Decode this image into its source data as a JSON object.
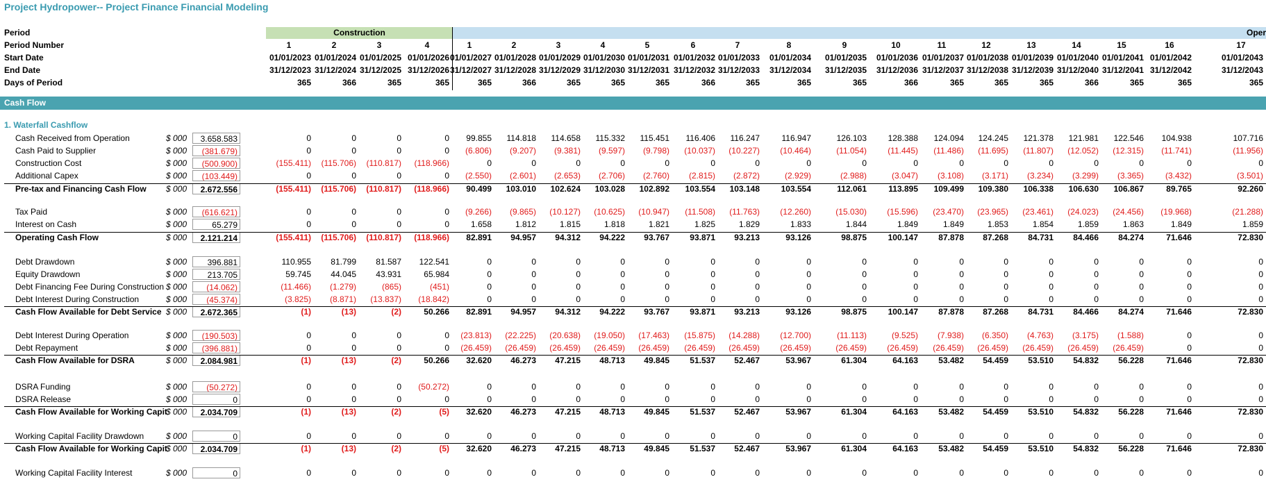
{
  "sheet_title": "Project Hydropower-- Project Finance Financial Modeling",
  "bands": {
    "construction": "Construction",
    "operation": "Oper"
  },
  "section": "Cash Flow",
  "subsection": "1. Waterfall Cashflow",
  "header_rows": [
    {
      "label": "Period",
      "cells": [
        "",
        "",
        "",
        "",
        "",
        "",
        "",
        "",
        "",
        "",
        "",
        "",
        "",
        "",
        "",
        "",
        "",
        "",
        "",
        "",
        ""
      ]
    },
    {
      "label": "Period Number",
      "cells": [
        "1",
        "2",
        "3",
        "4",
        "1",
        "2",
        "3",
        "4",
        "5",
        "6",
        "7",
        "8",
        "9",
        "10",
        "11",
        "12",
        "13",
        "14",
        "15",
        "16",
        "17"
      ]
    },
    {
      "label": "Start Date",
      "cells": [
        "01/01/2023",
        "01/01/2024",
        "01/01/2025",
        "01/01/2026",
        "01/01/2027",
        "01/01/2028",
        "01/01/2029",
        "01/01/2030",
        "01/01/2031",
        "01/01/2032",
        "01/01/2033",
        "01/01/2034",
        "01/01/2035",
        "01/01/2036",
        "01/01/2037",
        "01/01/2038",
        "01/01/2039",
        "01/01/2040",
        "01/01/2041",
        "01/01/2042",
        "01/01/2043"
      ]
    },
    {
      "label": "End Date",
      "cells": [
        "31/12/2023",
        "31/12/2024",
        "31/12/2025",
        "31/12/2026",
        "31/12/2027",
        "31/12/2028",
        "31/12/2029",
        "31/12/2030",
        "31/12/2031",
        "31/12/2032",
        "31/12/2033",
        "31/12/2034",
        "31/12/2035",
        "31/12/2036",
        "31/12/2037",
        "31/12/2038",
        "31/12/2039",
        "31/12/2040",
        "31/12/2041",
        "31/12/2042",
        "31/12/2043"
      ]
    },
    {
      "label": "Days of Period",
      "cells": [
        "365",
        "366",
        "365",
        "365",
        "365",
        "366",
        "365",
        "365",
        "365",
        "366",
        "365",
        "365",
        "365",
        "366",
        "365",
        "365",
        "365",
        "366",
        "365",
        "365",
        "365"
      ]
    }
  ],
  "rows": [
    {
      "label": "Cash Received from Operation",
      "unit": "$ 000",
      "total": "3.658.583",
      "values": [
        "0",
        "0",
        "0",
        "0",
        "99.855",
        "114.818",
        "114.658",
        "115.332",
        "115.451",
        "116.406",
        "116.247",
        "116.947",
        "126.103",
        "128.388",
        "124.094",
        "124.245",
        "121.378",
        "121.981",
        "122.546",
        "104.938",
        "107.716"
      ]
    },
    {
      "label": "Cash Paid to Supplier",
      "unit": "$ 000",
      "total": "(381.679)",
      "values": [
        "0",
        "0",
        "0",
        "0",
        "(6.806)",
        "(9.207)",
        "(9.381)",
        "(9.597)",
        "(9.798)",
        "(10.037)",
        "(10.227)",
        "(10.464)",
        "(11.054)",
        "(11.445)",
        "(11.486)",
        "(11.695)",
        "(11.807)",
        "(12.052)",
        "(12.315)",
        "(11.741)",
        "(11.956)"
      ]
    },
    {
      "label": "Construction Cost",
      "unit": "$ 000",
      "total": "(500.900)",
      "values": [
        "(155.411)",
        "(115.706)",
        "(110.817)",
        "(118.966)",
        "0",
        "0",
        "0",
        "0",
        "0",
        "0",
        "0",
        "0",
        "0",
        "0",
        "0",
        "0",
        "0",
        "0",
        "0",
        "0",
        "0"
      ]
    },
    {
      "label": "Additional Capex",
      "unit": "$ 000",
      "total": "(103.449)",
      "values": [
        "0",
        "0",
        "0",
        "0",
        "(2.550)",
        "(2.601)",
        "(2.653)",
        "(2.706)",
        "(2.760)",
        "(2.815)",
        "(2.872)",
        "(2.929)",
        "(2.988)",
        "(3.047)",
        "(3.108)",
        "(3.171)",
        "(3.234)",
        "(3.299)",
        "(3.365)",
        "(3.432)",
        "(3.501)"
      ]
    },
    {
      "label": "Pre-tax and Financing Cash Flow",
      "unit": "$ 000",
      "total": "2.672.556",
      "bold": true,
      "values": [
        "(155.411)",
        "(115.706)",
        "(110.817)",
        "(118.966)",
        "90.499",
        "103.010",
        "102.624",
        "103.028",
        "102.892",
        "103.554",
        "103.148",
        "103.554",
        "112.061",
        "113.895",
        "109.499",
        "109.380",
        "106.338",
        "106.630",
        "106.867",
        "89.765",
        "92.260"
      ]
    },
    {
      "label": "Tax Paid",
      "unit": "$ 000",
      "total": "(616.621)",
      "values": [
        "0",
        "0",
        "0",
        "0",
        "(9.266)",
        "(9.865)",
        "(10.127)",
        "(10.625)",
        "(10.947)",
        "(11.508)",
        "(11.763)",
        "(12.260)",
        "(15.030)",
        "(15.596)",
        "(23.470)",
        "(23.965)",
        "(23.461)",
        "(24.023)",
        "(24.456)",
        "(19.968)",
        "(21.288)"
      ]
    },
    {
      "label": "Interest on Cash",
      "unit": "$ 000",
      "total": "65.279",
      "values": [
        "0",
        "0",
        "0",
        "0",
        "1.658",
        "1.812",
        "1.815",
        "1.818",
        "1.821",
        "1.825",
        "1.829",
        "1.833",
        "1.844",
        "1.849",
        "1.849",
        "1.853",
        "1.854",
        "1.859",
        "1.863",
        "1.849",
        "1.859"
      ]
    },
    {
      "label": "Operating Cash Flow",
      "unit": "$ 000",
      "total": "2.121.214",
      "bold": true,
      "values": [
        "(155.411)",
        "(115.706)",
        "(110.817)",
        "(118.966)",
        "82.891",
        "94.957",
        "94.312",
        "94.222",
        "93.767",
        "93.871",
        "93.213",
        "93.126",
        "98.875",
        "100.147",
        "87.878",
        "87.268",
        "84.731",
        "84.466",
        "84.274",
        "71.646",
        "72.830"
      ]
    },
    {
      "label": "Debt Drawdown",
      "unit": "$ 000",
      "total": "396.881",
      "values": [
        "110.955",
        "81.799",
        "81.587",
        "122.541",
        "0",
        "0",
        "0",
        "0",
        "0",
        "0",
        "0",
        "0",
        "0",
        "0",
        "0",
        "0",
        "0",
        "0",
        "0",
        "0",
        "0"
      ]
    },
    {
      "label": "Equity Drawdown",
      "unit": "$ 000",
      "total": "213.705",
      "values": [
        "59.745",
        "44.045",
        "43.931",
        "65.984",
        "0",
        "0",
        "0",
        "0",
        "0",
        "0",
        "0",
        "0",
        "0",
        "0",
        "0",
        "0",
        "0",
        "0",
        "0",
        "0",
        "0"
      ]
    },
    {
      "label": "Debt Financing Fee During Construction",
      "unit": "$ 000",
      "total": "(14.062)",
      "values": [
        "(11.466)",
        "(1.279)",
        "(865)",
        "(451)",
        "0",
        "0",
        "0",
        "0",
        "0",
        "0",
        "0",
        "0",
        "0",
        "0",
        "0",
        "0",
        "0",
        "0",
        "0",
        "0",
        "0"
      ]
    },
    {
      "label": "Debt Interest During Construction",
      "unit": "$ 000",
      "total": "(45.374)",
      "values": [
        "(3.825)",
        "(8.871)",
        "(13.837)",
        "(18.842)",
        "0",
        "0",
        "0",
        "0",
        "0",
        "0",
        "0",
        "0",
        "0",
        "0",
        "0",
        "0",
        "0",
        "0",
        "0",
        "0",
        "0"
      ]
    },
    {
      "label": "Cash Flow Available for Debt Service",
      "unit": "$ 000",
      "total": "2.672.365",
      "bold": true,
      "values": [
        "(1)",
        "(13)",
        "(2)",
        "50.266",
        "82.891",
        "94.957",
        "94.312",
        "94.222",
        "93.767",
        "93.871",
        "93.213",
        "93.126",
        "98.875",
        "100.147",
        "87.878",
        "87.268",
        "84.731",
        "84.466",
        "84.274",
        "71.646",
        "72.830"
      ]
    },
    {
      "label": "Debt Interest During Operation",
      "unit": "$ 000",
      "total": "(190.503)",
      "values": [
        "0",
        "0",
        "0",
        "0",
        "(23.813)",
        "(22.225)",
        "(20.638)",
        "(19.050)",
        "(17.463)",
        "(15.875)",
        "(14.288)",
        "(12.700)",
        "(11.113)",
        "(9.525)",
        "(7.938)",
        "(6.350)",
        "(4.763)",
        "(3.175)",
        "(1.588)",
        "0",
        "0"
      ]
    },
    {
      "label": "Debt Repayment",
      "unit": "$ 000",
      "total": "(396.881)",
      "values": [
        "0",
        "0",
        "0",
        "0",
        "(26.459)",
        "(26.459)",
        "(26.459)",
        "(26.459)",
        "(26.459)",
        "(26.459)",
        "(26.459)",
        "(26.459)",
        "(26.459)",
        "(26.459)",
        "(26.459)",
        "(26.459)",
        "(26.459)",
        "(26.459)",
        "(26.459)",
        "0",
        "0"
      ]
    },
    {
      "label": "Cash Flow Available for DSRA",
      "unit": "$ 000",
      "total": "2.084.981",
      "bold": true,
      "values": [
        "(1)",
        "(13)",
        "(2)",
        "50.266",
        "32.620",
        "46.273",
        "47.215",
        "48.713",
        "49.845",
        "51.537",
        "52.467",
        "53.967",
        "61.304",
        "64.163",
        "53.482",
        "54.459",
        "53.510",
        "54.832",
        "56.228",
        "71.646",
        "72.830"
      ]
    },
    {
      "label": "DSRA Funding",
      "unit": "$ 000",
      "total": "(50.272)",
      "values": [
        "0",
        "0",
        "0",
        "(50.272)",
        "0",
        "0",
        "0",
        "0",
        "0",
        "0",
        "0",
        "0",
        "0",
        "0",
        "0",
        "0",
        "0",
        "0",
        "0",
        "0",
        "0"
      ]
    },
    {
      "label": "DSRA Release",
      "unit": "$ 000",
      "total": "0",
      "values": [
        "0",
        "0",
        "0",
        "0",
        "0",
        "0",
        "0",
        "0",
        "0",
        "0",
        "0",
        "0",
        "0",
        "0",
        "0",
        "0",
        "0",
        "0",
        "0",
        "0",
        "0"
      ]
    },
    {
      "label": "Cash Flow Available for Working Capital",
      "unit": "$ 000",
      "total": "2.034.709",
      "bold": true,
      "values": [
        "(1)",
        "(13)",
        "(2)",
        "(5)",
        "32.620",
        "46.273",
        "47.215",
        "48.713",
        "49.845",
        "51.537",
        "52.467",
        "53.967",
        "61.304",
        "64.163",
        "53.482",
        "54.459",
        "53.510",
        "54.832",
        "56.228",
        "71.646",
        "72.830"
      ]
    },
    {
      "label": "Working Capital Facility Drawdown",
      "unit": "$ 000",
      "total": "0",
      "values": [
        "0",
        "0",
        "0",
        "0",
        "0",
        "0",
        "0",
        "0",
        "0",
        "0",
        "0",
        "0",
        "0",
        "0",
        "0",
        "0",
        "0",
        "0",
        "0",
        "0",
        "0"
      ]
    },
    {
      "label": "Cash Flow Available for Working Capital",
      "unit": "$ 000",
      "total": "2.034.709",
      "bold": true,
      "values": [
        "(1)",
        "(13)",
        "(2)",
        "(5)",
        "32.620",
        "46.273",
        "47.215",
        "48.713",
        "49.845",
        "51.537",
        "52.467",
        "53.967",
        "61.304",
        "64.163",
        "53.482",
        "54.459",
        "53.510",
        "54.832",
        "56.228",
        "71.646",
        "72.830"
      ]
    },
    {
      "label": "Working Capital Facility Interest",
      "unit": "$ 000",
      "total": "0",
      "values": [
        "0",
        "0",
        "0",
        "0",
        "0",
        "0",
        "0",
        "0",
        "0",
        "0",
        "0",
        "0",
        "0",
        "0",
        "0",
        "0",
        "0",
        "0",
        "0",
        "0",
        "0"
      ]
    }
  ],
  "colors": {
    "title": "#3a9bb0",
    "section_band": "#4aa3b0",
    "construction_band": "#c6e0b4",
    "operation_band": "#c5dff0",
    "negative": "#e01b1b"
  }
}
